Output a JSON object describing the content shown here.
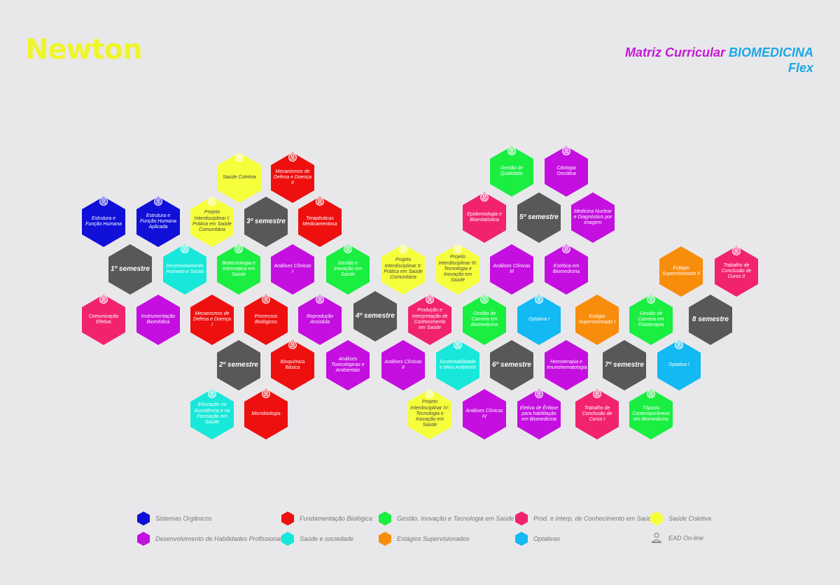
{
  "brand": {
    "logo": "Newton"
  },
  "title": {
    "prefix": "Matriz Curricular",
    "course": "BIOMEDICINA",
    "suffix": "Flex"
  },
  "colors": {
    "sistemas": "#1010d8",
    "fundamentacao": "#ee0f0f",
    "gestao": "#19ee41",
    "prod": "#f2236e",
    "saude_coletiva": "#f6ff3c",
    "habilidades": "#c40fe0",
    "sociedade": "#17e8d9",
    "estagios": "#f88d0c",
    "optativas": "#12b9f2",
    "semestre": "#58585a"
  },
  "cells": [
    {
      "label": "Saúde Coletiva",
      "cat": "saude_coletiva",
      "ead": true
    },
    {
      "label": "Mecanismos de Defesa e Doença II",
      "cat": "fundamentacao",
      "ead": true
    },
    {
      "label": "Gestão de Qualidade",
      "cat": "gestao",
      "ead": true
    },
    {
      "label": "Citologia Oncótica",
      "cat": "habilidades",
      "ead": true
    },
    {
      "label": "Estrutura e Função Humana",
      "cat": "sistemas",
      "ead": true
    },
    {
      "label": "Estrutura e Função Humana Aplicada",
      "cat": "sistemas",
      "ead": true
    },
    {
      "label": "Projeto Interdisciplinar I: Prática em Saúde Comunitária",
      "cat": "saude_coletiva",
      "ead": true
    },
    {
      "label": "3º semestre",
      "cat": "semestre",
      "ead": false
    },
    {
      "label": "Terapêuticas Medicamentosa",
      "cat": "fundamentacao",
      "ead": true
    },
    {
      "label": "Epidemiologia e Bioestatística",
      "cat": "prod",
      "ead": true
    },
    {
      "label": "5º semestre",
      "cat": "semestre",
      "ead": false
    },
    {
      "label": "Medicina Nuclear e Diagnóstico por imagem",
      "cat": "habilidades",
      "ead": false
    },
    {
      "label": "1º semestre",
      "cat": "semestre",
      "ead": false
    },
    {
      "label": "Desenvolvimento Humano e Social",
      "cat": "sociedade",
      "ead": true
    },
    {
      "label": "Biotecnologia e Informática em Saúde",
      "cat": "gestao",
      "ead": true
    },
    {
      "label": "Análises Clínicas I",
      "cat": "habilidades",
      "ead": false
    },
    {
      "label": "Gestão e Inovação em Saúde",
      "cat": "gestao",
      "ead": true
    },
    {
      "label": "Projeto Interdisciplinar II: Prática em Saúde Comunitária",
      "cat": "saude_coletiva",
      "ead": true
    },
    {
      "label": "Projeto Interdisciplinar III: Tecnologia e Inovação em Saúde",
      "cat": "saude_coletiva",
      "ead": true
    },
    {
      "label": "Análises Clínicas III",
      "cat": "habilidades",
      "ead": false
    },
    {
      "label": "Estética em Biomedicina",
      "cat": "habilidades",
      "ead": true
    },
    {
      "label": "Estágio Supervisionado II",
      "cat": "estagios",
      "ead": false
    },
    {
      "label": "Trabalho de Conclusão de Curso II",
      "cat": "prod",
      "ead": true
    },
    {
      "label": "Comunicação Efetiva",
      "cat": "prod",
      "ead": true
    },
    {
      "label": "Instrumentação Biomédica",
      "cat": "habilidades",
      "ead": false
    },
    {
      "label": "Mecanismos de Defesa e Doença I",
      "cat": "fundamentacao",
      "ead": false
    },
    {
      "label": "Processos Biológicos",
      "cat": "fundamentacao",
      "ead": true
    },
    {
      "label": "Reprodução Assistida",
      "cat": "habilidades",
      "ead": true
    },
    {
      "label": "4º semestre",
      "cat": "semestre",
      "ead": false
    },
    {
      "label": "Produção e Interpretação de Conhecimento em Saúde",
      "cat": "prod",
      "ead": true
    },
    {
      "label": "Gestão de Carreira em Biomedicina",
      "cat": "gestao",
      "ead": true
    },
    {
      "label": "Optativa I",
      "cat": "optativas",
      "ead": true
    },
    {
      "label": "Estágio Supervisionado I",
      "cat": "estagios",
      "ead": false
    },
    {
      "label": "Gestão de Carreira em Fisioterapia",
      "cat": "gestao",
      "ead": true
    },
    {
      "label": "8 semestre",
      "cat": "semestre",
      "ead": false
    },
    {
      "label": "2º semestre",
      "cat": "semestre",
      "ead": false
    },
    {
      "label": "Bioquímica Básica",
      "cat": "fundamentacao",
      "ead": true
    },
    {
      "label": "Análises Toxicológicas e Ambientais",
      "cat": "habilidades",
      "ead": false
    },
    {
      "label": "Análises Clínicas II",
      "cat": "habilidades",
      "ead": false
    },
    {
      "label": "Sustentabilidade e Meio Ambiente",
      "cat": "sociedade",
      "ead": true
    },
    {
      "label": "6º semestre",
      "cat": "semestre",
      "ead": false
    },
    {
      "label": "Hemoterapia e Imunohematologia",
      "cat": "habilidades",
      "ead": false
    },
    {
      "label": "7º semestre",
      "cat": "semestre",
      "ead": false
    },
    {
      "label": "Optativa I",
      "cat": "optativas",
      "ead": true
    },
    {
      "label": "Educação na Assistência e na Formação em Saúde",
      "cat": "sociedade",
      "ead": true
    },
    {
      "label": "Microbiologia",
      "cat": "fundamentacao",
      "ead": true
    },
    {
      "label": "Projeto Interdisciplinar IV: Tecnologia e Inovação em Saúde",
      "cat": "saude_coletiva",
      "ead": true
    },
    {
      "label": "Análises Clínicas IV",
      "cat": "habilidades",
      "ead": false
    },
    {
      "label": "Eletiva de Ênfase para habilitação em Biomedicina",
      "cat": "habilidades",
      "ead": true
    },
    {
      "label": "Trabalho de Conclusão de Curso I",
      "cat": "prod",
      "ead": true
    },
    {
      "label": "Tópicos Contemporâneos em Biomedicina",
      "cat": "gestao",
      "ead": true
    }
  ],
  "legend": [
    {
      "label": "Sistemas Orgânicos",
      "cat": "sistemas"
    },
    {
      "label": "Fundamentação Biológica",
      "cat": "fundamentacao"
    },
    {
      "label": "Gestão, Inovação e Tecnologia em Saúde",
      "cat": "gestao"
    },
    {
      "label": "Prod. e Interp. de Conhecimento em Saúde",
      "cat": "prod"
    },
    {
      "label": "Saúde Coletiva",
      "cat": "saude_coletiva"
    },
    {
      "label": "Desenvolvimento de Habilidades Profissionais",
      "cat": "habilidades"
    },
    {
      "label": "Saúde e sociedade",
      "cat": "sociedade"
    },
    {
      "label": "Estágios Supervisionados",
      "cat": "estagios"
    },
    {
      "label": "Optativas",
      "cat": "optativas"
    },
    {
      "label": "EAD On-line",
      "cat": "ead"
    }
  ]
}
